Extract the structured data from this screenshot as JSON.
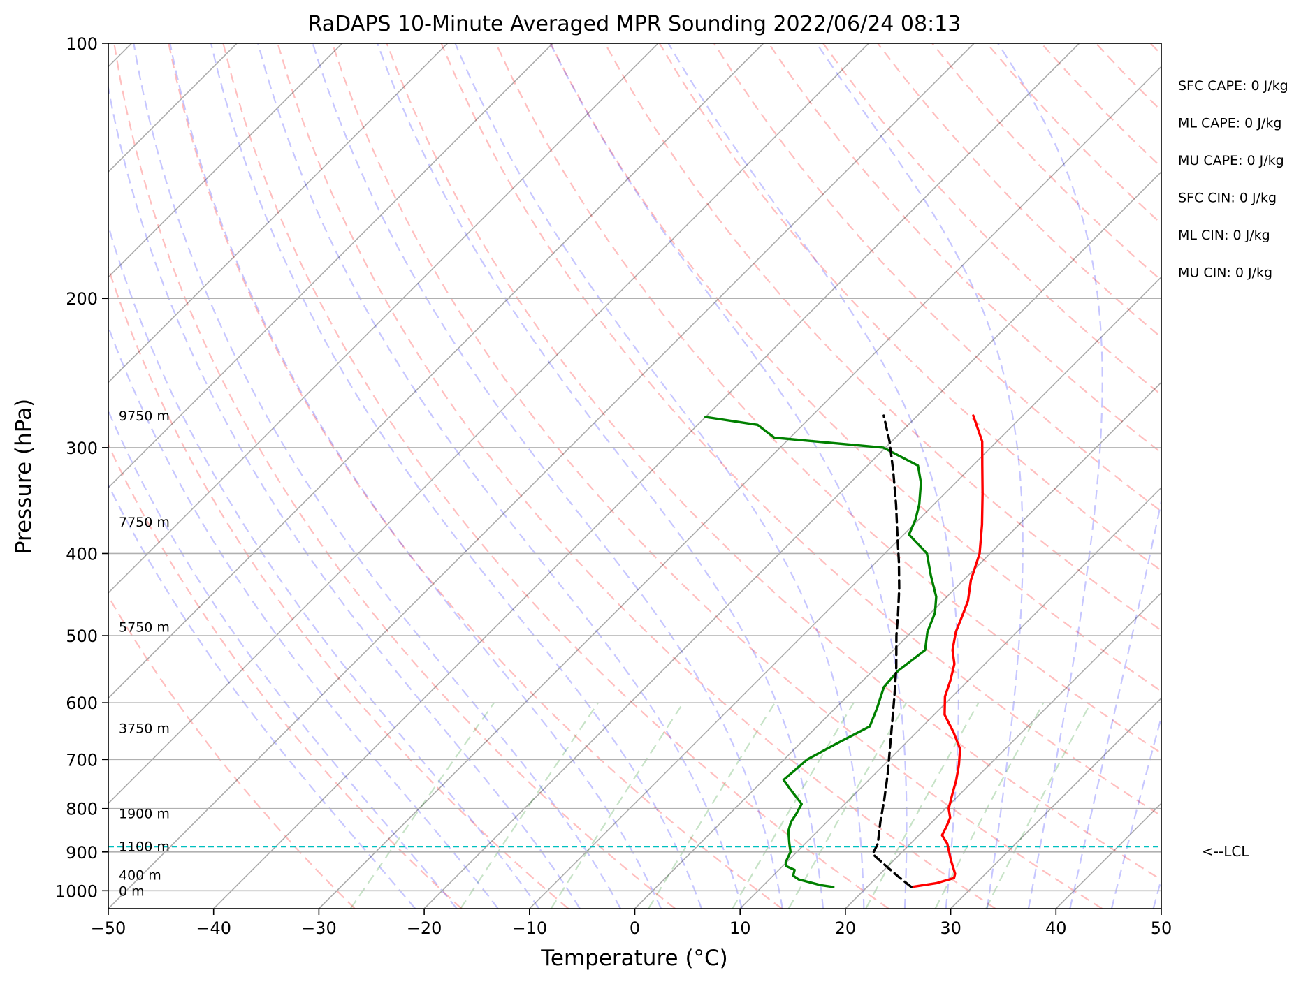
{
  "chart_data": {
    "type": "line",
    "subtype": "skew-t log-p sounding",
    "title": "RaDAPS 10-Minute Averaged MPR Sounding 2022/06/24 08:13",
    "xlabel": "Temperature (°C)",
    "ylabel": "Pressure (hPa)",
    "xlim": [
      -50,
      50
    ],
    "ylim": [
      1050,
      100
    ],
    "y_scale": "log",
    "grid": true,
    "x_ticks": [
      "−50",
      "−40",
      "−30",
      "−20",
      "−10",
      "0",
      "10",
      "20",
      "30",
      "40",
      "50"
    ],
    "x_tick_values": [
      -50,
      -40,
      -30,
      -20,
      -10,
      0,
      10,
      20,
      30,
      40,
      50
    ],
    "y_ticks": [
      "100",
      "200",
      "300",
      "400",
      "500",
      "600",
      "700",
      "800",
      "900",
      "1000"
    ],
    "y_tick_values": [
      100,
      200,
      300,
      400,
      500,
      600,
      700,
      800,
      900,
      1000
    ],
    "series": [
      {
        "role": "temperature",
        "color": "#ff0000",
        "points": [
          [
            990,
            24.2
          ],
          [
            980,
            26.2
          ],
          [
            966,
            27.4
          ],
          [
            955,
            27.1
          ],
          [
            920,
            25.4
          ],
          [
            880,
            23.5
          ],
          [
            860,
            22.2
          ],
          [
            840,
            21.8
          ],
          [
            820,
            21.3
          ],
          [
            800,
            20.3
          ],
          [
            770,
            19.3
          ],
          [
            740,
            18.3
          ],
          [
            710,
            17.1
          ],
          [
            680,
            15.7
          ],
          [
            650,
            13.5
          ],
          [
            620,
            11.0
          ],
          [
            590,
            9.3
          ],
          [
            565,
            8.3
          ],
          [
            540,
            7.1
          ],
          [
            520,
            5.6
          ],
          [
            495,
            4.2
          ],
          [
            470,
            3.1
          ],
          [
            455,
            2.4
          ],
          [
            430,
            0.7
          ],
          [
            400,
            -1.0
          ],
          [
            370,
            -3.5
          ],
          [
            340,
            -6.4
          ],
          [
            315,
            -9.1
          ],
          [
            295,
            -11.4
          ],
          [
            275,
            -14.7
          ]
        ]
      },
      {
        "role": "dewpoint",
        "color": "#008000",
        "points": [
          [
            990,
            16.8
          ],
          [
            985,
            15.4
          ],
          [
            970,
            12.8
          ],
          [
            960,
            11.9
          ],
          [
            945,
            11.5
          ],
          [
            935,
            10.3
          ],
          [
            925,
            9.9
          ],
          [
            900,
            9.4
          ],
          [
            880,
            8.5
          ],
          [
            850,
            7.2
          ],
          [
            830,
            6.6
          ],
          [
            810,
            6.3
          ],
          [
            790,
            5.9
          ],
          [
            760,
            3.5
          ],
          [
            740,
            1.9
          ],
          [
            700,
            2.2
          ],
          [
            670,
            3.5
          ],
          [
            640,
            5.0
          ],
          [
            610,
            4.0
          ],
          [
            575,
            2.6
          ],
          [
            550,
            2.4
          ],
          [
            520,
            3.0
          ],
          [
            495,
            1.5
          ],
          [
            470,
            0.4
          ],
          [
            450,
            -1.0
          ],
          [
            425,
            -3.5
          ],
          [
            400,
            -6.0
          ],
          [
            380,
            -9.5
          ],
          [
            365,
            -10.3
          ],
          [
            350,
            -11.4
          ],
          [
            330,
            -13.3
          ],
          [
            315,
            -15.2
          ],
          [
            300,
            -20.2
          ],
          [
            292,
            -31.5
          ],
          [
            282,
            -34.3
          ],
          [
            276,
            -40.0
          ]
        ]
      },
      {
        "role": "parcel-profile",
        "color": "#000000",
        "dash": true,
        "points": [
          [
            990,
            24.2
          ],
          [
            960,
            21.8
          ],
          [
            930,
            19.4
          ],
          [
            905,
            17.4
          ],
          [
            880,
            16.9
          ],
          [
            830,
            15.1
          ],
          [
            780,
            13.3
          ],
          [
            730,
            11.3
          ],
          [
            690,
            9.5
          ],
          [
            640,
            7.1
          ],
          [
            590,
            4.5
          ],
          [
            545,
            1.9
          ],
          [
            500,
            -1.1
          ],
          [
            470,
            -3.1
          ],
          [
            440,
            -5.3
          ],
          [
            410,
            -7.8
          ],
          [
            380,
            -10.6
          ],
          [
            350,
            -13.6
          ],
          [
            320,
            -17.0
          ],
          [
            295,
            -20.2
          ],
          [
            275,
            -23.2
          ]
        ]
      }
    ],
    "lcl": {
      "pressure": 887,
      "label": "<--LCL",
      "color": "#00bfbf"
    },
    "height_labels": [
      {
        "text": "0 m",
        "pressure": 1000
      },
      {
        "text": "400 m",
        "pressure": 958
      },
      {
        "text": "1100 m",
        "pressure": 886
      },
      {
        "text": "1900 m",
        "pressure": 810
      },
      {
        "text": "3750 m",
        "pressure": 643
      },
      {
        "text": "5750 m",
        "pressure": 488
      },
      {
        "text": "7750 m",
        "pressure": 367
      },
      {
        "text": "9750 m",
        "pressure": 275
      }
    ],
    "indices": [
      "SFC CAPE: 0 J/kg",
      "ML CAPE: 0 J/kg",
      "MU CAPE: 0 J/kg",
      "SFC CIN: 0 J/kg",
      "ML CIN: 0 J/kg",
      "MU CIN: 0 J/kg"
    ],
    "reference_lines": {
      "isotherms_color": "#000000",
      "dry_adiabats_color": "#ff0000",
      "moist_adiabats_color": "#0000ff",
      "mixing_ratio_color": "#008000"
    }
  }
}
